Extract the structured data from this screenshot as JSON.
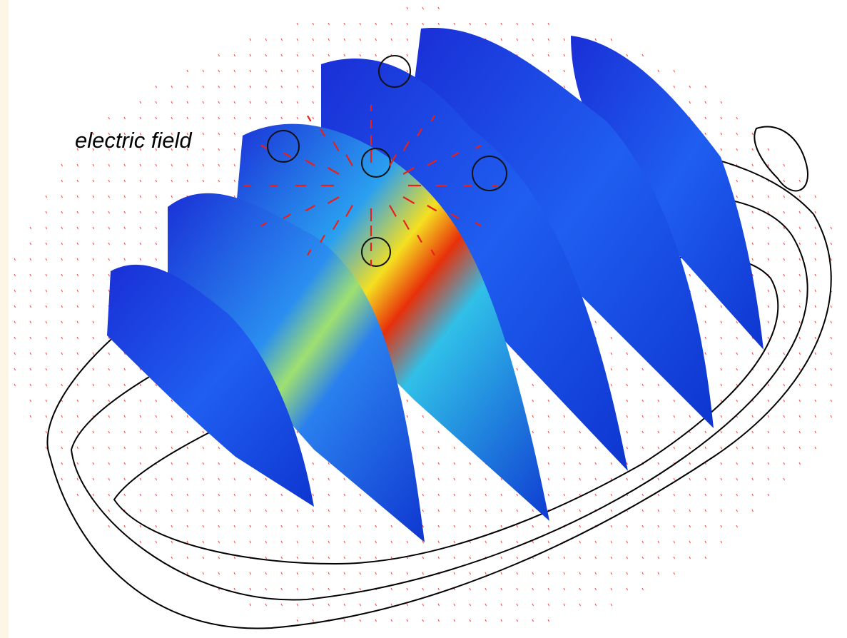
{
  "annotation": "electric field"
}
